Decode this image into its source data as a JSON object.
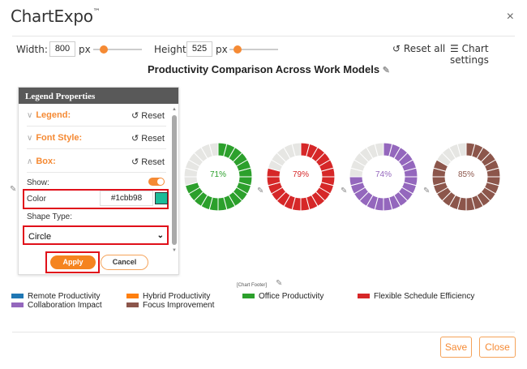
{
  "app": {
    "title": "ChartExpo",
    "trademark": "™",
    "close_icon": "×"
  },
  "toolbar": {
    "width_label": "Width:",
    "width_value": "800",
    "width_unit": "px",
    "height_label": "Height:",
    "height_value": "525",
    "height_unit": "px",
    "reset_all_icon": "↺",
    "reset_all_label": "Reset all",
    "chart_settings_icon": "☰",
    "chart_settings_label": "Chart settings"
  },
  "chart_title": "Productivity Comparison Across Work Models",
  "legend_panel": {
    "header": "Legend Properties",
    "sections": [
      {
        "label": "Legend:",
        "chevron": "∨",
        "reset": "Reset"
      },
      {
        "label": "Font Style:",
        "chevron": "∨",
        "reset": "Reset"
      },
      {
        "label": "Box:",
        "chevron": "∧",
        "reset": "Reset"
      }
    ],
    "reset_icon": "↺",
    "show_label": "Show:",
    "show_enabled": true,
    "color_label": "Color",
    "color_value": "#1cbb98",
    "shape_type_label": "Shape Type:",
    "shape_type_value": "Circle",
    "apply_label": "Apply",
    "cancel_label": "Cancel"
  },
  "donuts": [
    {
      "label": "71%",
      "value": 71,
      "color": "#2ca02c",
      "text_color": "#2ca02c"
    },
    {
      "label": "79%",
      "value": 79,
      "color": "#d62728",
      "text_color": "#d62728"
    },
    {
      "label": "74%",
      "value": 74,
      "color": "#9467bd",
      "text_color": "#9467bd"
    },
    {
      "label": "85%",
      "value": 85,
      "color": "#8c564b",
      "text_color": "#8c564b"
    }
  ],
  "legend": {
    "footer_label": "[Chart Footer]",
    "items": [
      {
        "label": "Remote Productivity",
        "color": "#1f77b4"
      },
      {
        "label": "Collaboration Impact",
        "color": "#9467bd"
      },
      {
        "label": "Hybrid Productivity",
        "color": "#ff7f0e"
      },
      {
        "label": "Focus Improvement",
        "color": "#8c564b"
      },
      {
        "label": "Office Productivity",
        "color": "#2ca02c"
      },
      {
        "label": "Flexible Schedule Efficiency",
        "color": "#d62728"
      }
    ]
  },
  "footer_buttons": {
    "save": "Save",
    "close": "Close"
  },
  "chart_data": {
    "type": "donut",
    "title": "Productivity Comparison Across Work Models",
    "categories": [
      "Office Productivity",
      "Flexible Schedule Efficiency",
      "Collaboration Impact",
      "Focus Improvement"
    ],
    "values": [
      71,
      79,
      74,
      85
    ],
    "unit": "%",
    "segments_per_ring": 24,
    "legend_entries": [
      "Remote Productivity",
      "Collaboration Impact",
      "Hybrid Productivity",
      "Focus Improvement",
      "Office Productivity",
      "Flexible Schedule Efficiency"
    ],
    "legend_position": "bottom"
  }
}
